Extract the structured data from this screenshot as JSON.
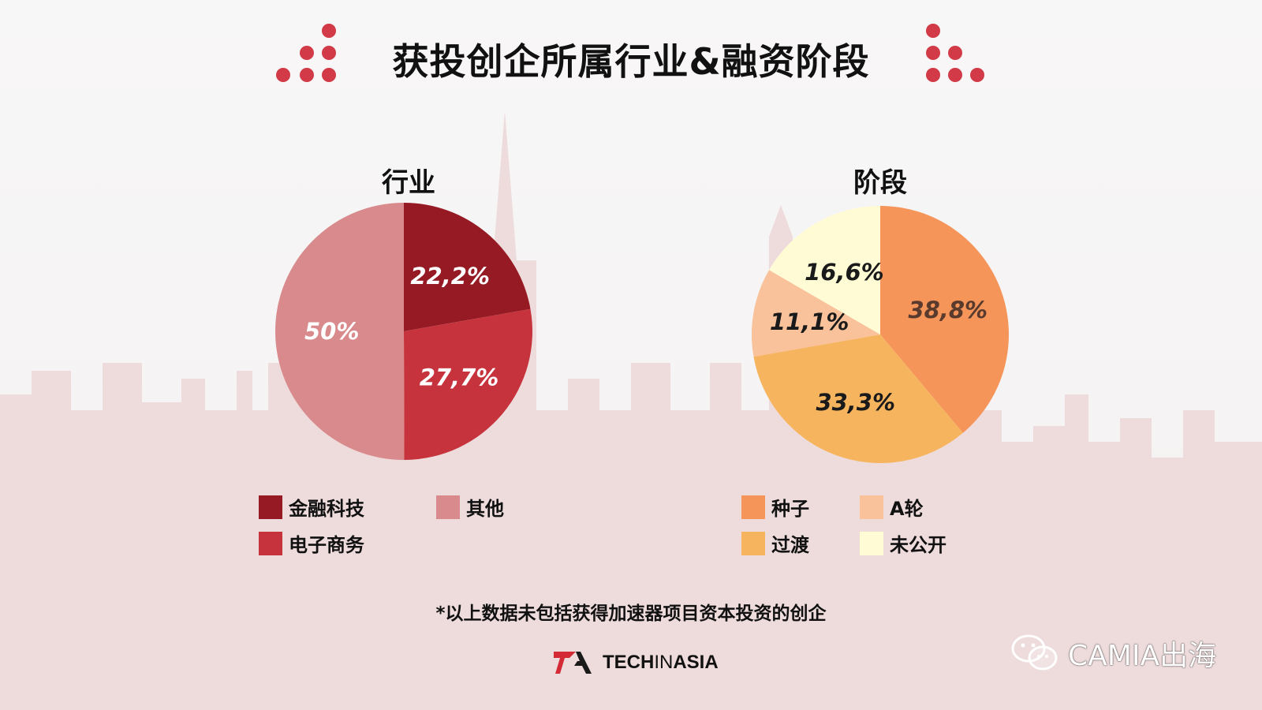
{
  "title": "获投创企所属行业&融资阶段",
  "colors": {
    "accent_dots": "#d13a46",
    "skyline": "#eddada"
  },
  "chart_data": [
    {
      "type": "pie",
      "title": "行业",
      "slices": [
        {
          "label": "金融科技",
          "value": 22.2,
          "display": "22,2%",
          "color": "#951a23",
          "label_color": "#ffffff"
        },
        {
          "label": "电子商务",
          "value": 27.7,
          "display": "27,7%",
          "color": "#c6333c",
          "label_color": "#ffffff"
        },
        {
          "label": "其他",
          "value": 50,
          "display": "50%",
          "color": "#d98a8c",
          "label_color": "#ffffff"
        }
      ],
      "legend": [
        {
          "label": "金融科技",
          "color": "#951a23"
        },
        {
          "label": "其他",
          "color": "#d98a8c"
        },
        {
          "label": "电子商务",
          "color": "#c6333c"
        }
      ]
    },
    {
      "type": "pie",
      "title": "阶段",
      "slices": [
        {
          "label": "种子",
          "value": 38.8,
          "display": "38,8%",
          "color": "#f5955a",
          "label_color": "#5a3a2c"
        },
        {
          "label": "过渡",
          "value": 33.3,
          "display": "33,3%",
          "color": "#f7b45e",
          "label_color": "#1a1a1a"
        },
        {
          "label": "A轮",
          "value": 11.1,
          "display": "11,1%",
          "color": "#f9c29b",
          "label_color": "#1a1a1a"
        },
        {
          "label": "未公开",
          "value": 16.6,
          "display": "16,6%",
          "color": "#fffbd4",
          "label_color": "#1a1a1a"
        }
      ],
      "legend": [
        {
          "label": "种子",
          "color": "#f5955a"
        },
        {
          "label": "A轮",
          "color": "#f9c29b"
        },
        {
          "label": "过渡",
          "color": "#f7b45e"
        },
        {
          "label": "未公开",
          "color": "#fffbd4"
        }
      ]
    }
  ],
  "footnote": "*以上数据未包括获得加速器项目资本投资的创企",
  "brand": {
    "name_part1": "TECH",
    "name_part2": "IN",
    "name_part3": "ASIA"
  },
  "watermark": {
    "text": "CAMIA出海",
    "icon": "wechat-icon"
  }
}
